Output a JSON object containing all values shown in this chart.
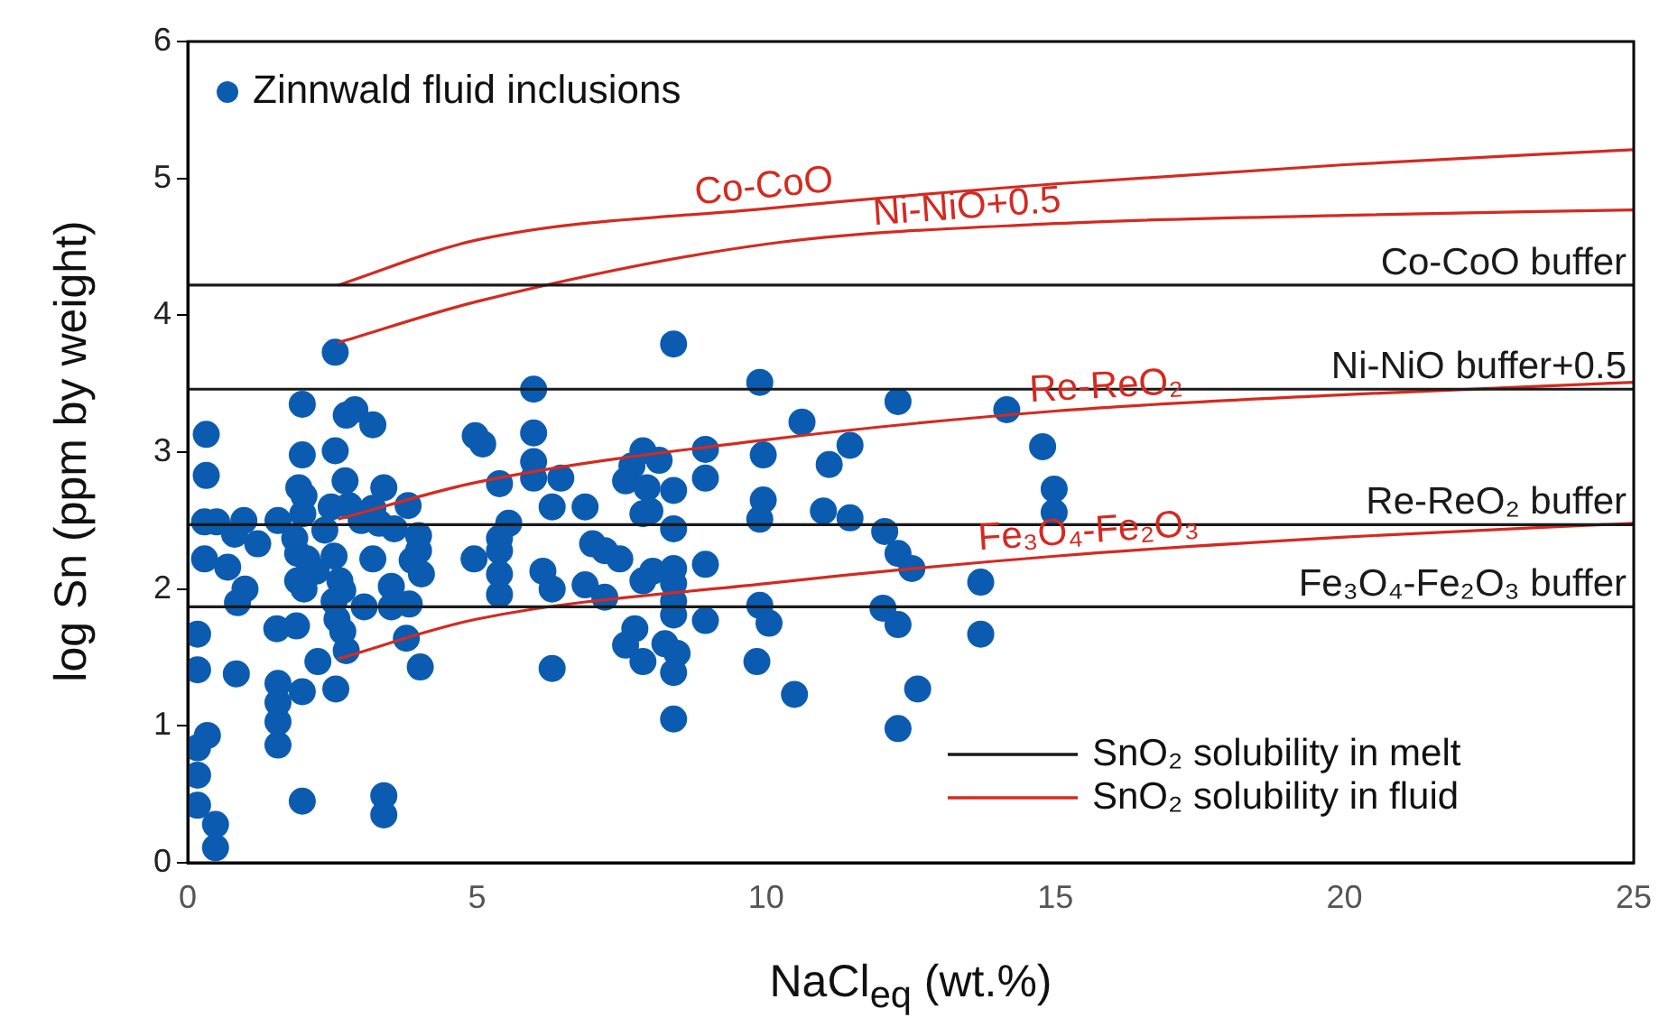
{
  "chart_data": {
    "type": "scatter",
    "xlabel": "NaCl$_{eq}$ (wt.%)",
    "ylabel": "log Sn (ppm by weight)",
    "xlim": [
      0,
      25
    ],
    "xticks": [
      0,
      5,
      10,
      15,
      20,
      25
    ],
    "ylim": [
      0,
      6
    ],
    "yticks": [
      0,
      1,
      2,
      3,
      4,
      5,
      6
    ],
    "legend": "top left",
    "series": [
      {
        "name": "Zinnwald fluid inclusions",
        "color": "#0b5cb0",
        "marker": "circle",
        "x": [
          2.55,
          1.98,
          2.74,
          2.89,
          3.2,
          0.32,
          1.98,
          2.55,
          0.32,
          2.72,
          1.92,
          2.01,
          3.39,
          2.48,
          2.79,
          3.2,
          3.81,
          1.99,
          0.29,
          0.5,
          0.97,
          1.56,
          0.81,
          1.21,
          1.85,
          1.9,
          2.37,
          3.0,
          3.31,
          3.57,
          3.99,
          3.99,
          0.29,
          0.69,
          2.06,
          2.53,
          2.22,
          3.2,
          3.88,
          4.04,
          1.9,
          2.01,
          2.63,
          2.68,
          3.52,
          0.99,
          0.86,
          2.53,
          2.58,
          2.68,
          3.05,
          3.52,
          3.83,
          3.78,
          1.54,
          1.88,
          0.17,
          2.74,
          2.25,
          4.02,
          0.17,
          0.84,
          1.56,
          1.56,
          1.56,
          1.56,
          1.98,
          2.56,
          0.34,
          0.17,
          0.17,
          0.17,
          1.98,
          3.39,
          3.39,
          0.48,
          0.48,
          8.4,
          5.98,
          9.89,
          4.97,
          5.1,
          5.98,
          5.98,
          5.98,
          5.39,
          6.45,
          6.3,
          6.87,
          7.87,
          7.68,
          8.15,
          7.57,
          7.94,
          8.4,
          8.95,
          8.95,
          9.95,
          9.95,
          9.89,
          7.87,
          7.99,
          8.4,
          5.55,
          5.39,
          5.39,
          4.95,
          5.39,
          5.39,
          6.14,
          6.3,
          7.0,
          7.21,
          7.47,
          6.87,
          7.21,
          7.87,
          8.04,
          8.4,
          8.4,
          8.95,
          8.4,
          8.4,
          8.95,
          9.89,
          10.05,
          7.73,
          7.57,
          7.87,
          8.25,
          8.46,
          8.4,
          6.3,
          9.84,
          8.4,
          12.28,
          10.62,
          14.16,
          11.45,
          11.09,
          14.78,
          10.99,
          11.45,
          14.98,
          14.98,
          12.05,
          12.28,
          12.52,
          13.71,
          12.02,
          12.28,
          13.71,
          10.49,
          12.62,
          12.28
        ],
        "values": [
          3.73,
          3.35,
          3.27,
          3.31,
          3.2,
          3.13,
          2.98,
          3.01,
          2.83,
          2.79,
          2.74,
          2.68,
          2.74,
          2.6,
          2.61,
          2.59,
          2.61,
          2.55,
          2.49,
          2.49,
          2.5,
          2.5,
          2.4,
          2.33,
          2.37,
          2.26,
          2.43,
          2.5,
          2.48,
          2.44,
          2.39,
          2.28,
          2.22,
          2.16,
          2.22,
          2.24,
          2.13,
          2.22,
          2.21,
          2.11,
          2.06,
          2.0,
          2.06,
          1.99,
          2.02,
          2.0,
          1.9,
          1.91,
          1.78,
          1.69,
          1.87,
          1.87,
          1.89,
          1.64,
          1.71,
          1.73,
          1.67,
          1.55,
          1.47,
          1.43,
          1.41,
          1.38,
          1.31,
          1.17,
          1.03,
          0.86,
          1.25,
          1.27,
          0.93,
          0.84,
          0.64,
          0.42,
          0.45,
          0.49,
          0.35,
          0.28,
          0.11,
          3.79,
          3.46,
          3.51,
          3.12,
          3.06,
          3.14,
          2.93,
          2.81,
          2.77,
          2.81,
          2.6,
          2.6,
          3.01,
          2.9,
          2.94,
          2.79,
          2.74,
          2.72,
          3.02,
          2.81,
          2.98,
          2.65,
          2.51,
          2.55,
          2.57,
          2.44,
          2.48,
          2.37,
          2.28,
          2.22,
          2.11,
          1.96,
          2.13,
          2.0,
          2.33,
          2.28,
          2.22,
          2.03,
          1.94,
          2.06,
          2.13,
          2.15,
          2.04,
          2.18,
          1.91,
          1.81,
          1.77,
          1.88,
          1.75,
          1.71,
          1.59,
          1.47,
          1.6,
          1.53,
          1.39,
          1.42,
          1.47,
          1.05,
          3.37,
          3.22,
          3.31,
          3.05,
          2.91,
          3.04,
          2.57,
          2.52,
          2.73,
          2.56,
          2.42,
          2.26,
          2.15,
          2.05,
          1.86,
          1.74,
          1.67,
          1.23,
          1.27,
          0.98
        ]
      },
      {
        "name": "SnO₂ solubility in melt",
        "type": "line",
        "color": "#1a1a1a",
        "x": [
          0,
          25
        ],
        "values": [
          4.22,
          4.22
        ]
      },
      {
        "type": "line",
        "color": "#1a1a1a",
        "x": [
          0,
          25
        ],
        "values": [
          3.46,
          3.46
        ]
      },
      {
        "type": "line",
        "color": "#1a1a1a",
        "x": [
          0,
          25
        ],
        "values": [
          2.47,
          2.47
        ]
      },
      {
        "type": "line",
        "color": "#1a1a1a",
        "x": [
          0,
          25
        ],
        "values": [
          1.87,
          1.87
        ]
      },
      {
        "name": "SnO₂ solubility in fluid",
        "type": "line",
        "color": "#d42a20",
        "x": [
          2.6,
          5,
          10,
          15,
          20,
          25
        ],
        "values": [
          4.22,
          4.55,
          4.78,
          4.96,
          5.1,
          5.21
        ]
      },
      {
        "type": "line",
        "color": "#d42a20",
        "x": [
          2.6,
          5,
          10,
          15,
          20,
          25
        ],
        "values": [
          3.8,
          4.1,
          4.52,
          4.67,
          4.73,
          4.77
        ]
      },
      {
        "type": "line",
        "color": "#d42a20",
        "x": [
          2.6,
          5,
          10,
          15,
          20,
          25
        ],
        "values": [
          2.51,
          2.78,
          3.09,
          3.3,
          3.42,
          3.51
        ]
      },
      {
        "type": "line",
        "color": "#d42a20",
        "x": [
          2.6,
          5,
          10,
          15,
          20,
          25
        ],
        "values": [
          1.49,
          1.78,
          2.04,
          2.24,
          2.38,
          2.48
        ]
      }
    ],
    "annotations": [
      {
        "text": "Co-CoO buffer",
        "x": 25,
        "y": 4.22
      },
      {
        "text": "Ni-NiO buffer+0.5",
        "x": 25,
        "y": 3.46
      },
      {
        "text": "Re-ReO₂ buffer",
        "x": 25,
        "y": 2.47
      },
      {
        "text": "Fe₃O₄-Fe₂O₃ buffer",
        "x": 25,
        "y": 1.87
      },
      {
        "text": "Co-CoO",
        "x": 10,
        "y": 4.78
      },
      {
        "text": "Ni-NiO+0.5",
        "x": 13.5,
        "y": 4.63
      },
      {
        "text": "Re-ReO₂",
        "x": 15.9,
        "y": 3.32
      },
      {
        "text": "Fe₃O₄-Fe₂O₃",
        "x": 15.6,
        "y": 2.26
      }
    ]
  }
}
